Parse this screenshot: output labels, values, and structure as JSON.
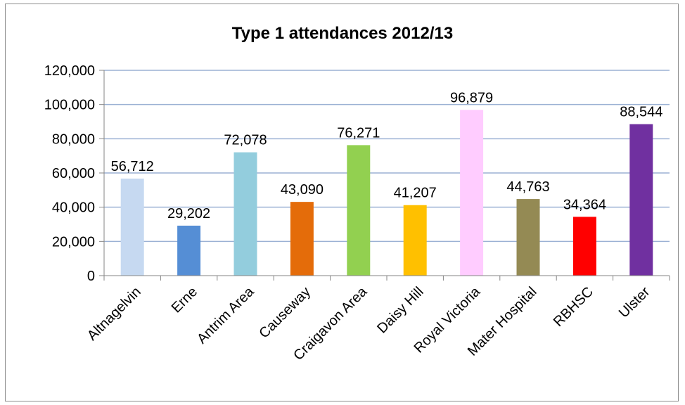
{
  "chart_data": {
    "type": "bar",
    "title": "Type 1 attendances 2012/13",
    "categories": [
      "Altnagelvin",
      "Erne",
      "Antrim Area",
      "Causeway",
      "Craigavon Area",
      "Daisy Hill",
      "Royal Victoria",
      "Mater Hospital",
      "RBHSC",
      "Ulster"
    ],
    "values": [
      56712,
      29202,
      72078,
      43090,
      76271,
      41207,
      96879,
      44763,
      34364,
      88544
    ],
    "data_labels": [
      "56,712",
      "29,202",
      "72,078",
      "43,090",
      "76,271",
      "41,207",
      "96,879",
      "44,763",
      "34,364",
      "88,544"
    ],
    "bar_colors": [
      "#c6d9f1",
      "#558ed5",
      "#93cddd",
      "#e46c0a",
      "#92d050",
      "#ffc000",
      "#ffccff",
      "#948a54",
      "#ff0000",
      "#7030a0"
    ],
    "ylim": [
      0,
      120000
    ],
    "yticks": [
      0,
      20000,
      40000,
      60000,
      80000,
      100000,
      120000
    ],
    "ytick_labels": [
      "0",
      "20,000",
      "40,000",
      "60,000",
      "80,000",
      "100,000",
      "120,000"
    ],
    "grid": true,
    "gridline_color": "#9bb1d4",
    "legend": "none",
    "xlabel": "",
    "ylabel": ""
  }
}
